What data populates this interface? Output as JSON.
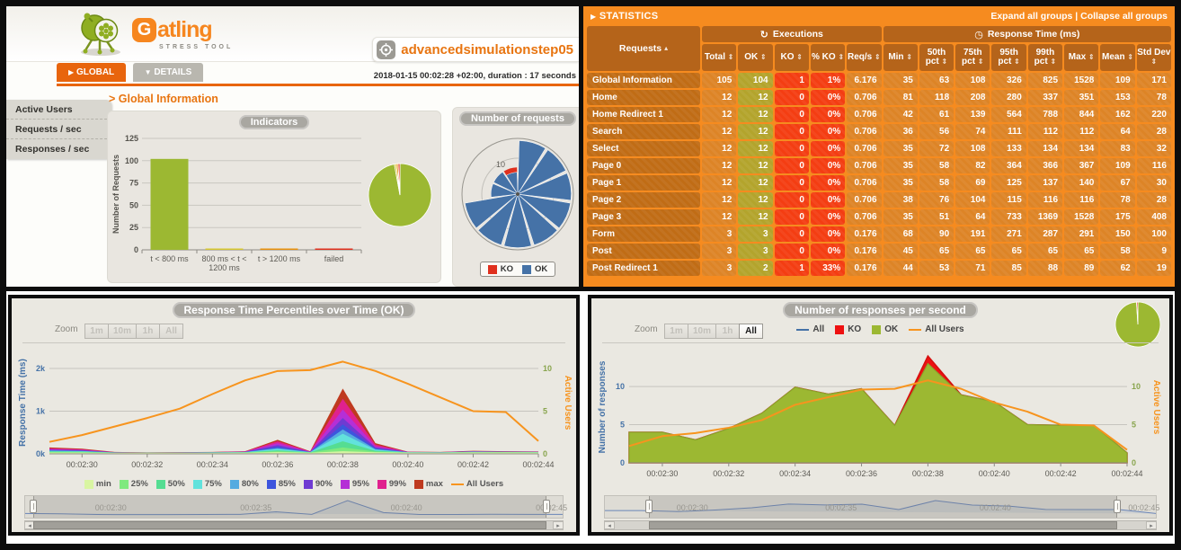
{
  "report": {
    "logo": {
      "g": "G",
      "rest": "atling",
      "subtitle": "STRESS TOOL"
    },
    "simulation": "advancedsimulationstep05",
    "run_info": "2018-01-15 00:02:28 +02:00, duration : 17 seconds",
    "tabs": [
      {
        "label": "GLOBAL",
        "arrow": "▶"
      },
      {
        "label": "DETAILS",
        "arrow": "▼"
      }
    ],
    "sidebar": [
      "Active Users",
      "Requests / sec",
      "Responses / sec"
    ],
    "section_title": "> Global Information"
  },
  "stats": {
    "header": "STATISTICS",
    "expand_label": "Expand all groups",
    "links_sep": " | ",
    "collapse_label": "Collapse all groups",
    "groups": {
      "executions": "Executions",
      "response_time": "Response Time (ms)"
    },
    "group_icons": {
      "executions": "↻",
      "response_time": "◷"
    },
    "requests_col": "Requests",
    "requests_sort": "▴",
    "sort_glyph": "⇕",
    "columns": [
      "Total",
      "OK",
      "KO",
      "% KO",
      "Req/s",
      "Min",
      "50th pct",
      "75th pct",
      "95th pct",
      "99th pct",
      "Max",
      "Mean",
      "Std Dev"
    ],
    "rows": [
      {
        "name": "Global Information",
        "summary": true,
        "values": [
          "105",
          "104",
          "1",
          "1%",
          "6.176",
          "35",
          "63",
          "108",
          "326",
          "825",
          "1528",
          "109",
          "171"
        ]
      },
      {
        "name": "Home",
        "values": [
          "12",
          "12",
          "0",
          "0%",
          "0.706",
          "81",
          "118",
          "208",
          "280",
          "337",
          "351",
          "153",
          "78"
        ]
      },
      {
        "name": "Home Redirect 1",
        "values": [
          "12",
          "12",
          "0",
          "0%",
          "0.706",
          "42",
          "61",
          "139",
          "564",
          "788",
          "844",
          "162",
          "220"
        ]
      },
      {
        "name": "Search",
        "values": [
          "12",
          "12",
          "0",
          "0%",
          "0.706",
          "36",
          "56",
          "74",
          "111",
          "112",
          "112",
          "64",
          "28"
        ]
      },
      {
        "name": "Select",
        "values": [
          "12",
          "12",
          "0",
          "0%",
          "0.706",
          "35",
          "72",
          "108",
          "133",
          "134",
          "134",
          "83",
          "32"
        ]
      },
      {
        "name": "Page 0",
        "values": [
          "12",
          "12",
          "0",
          "0%",
          "0.706",
          "35",
          "58",
          "82",
          "364",
          "366",
          "367",
          "109",
          "116"
        ]
      },
      {
        "name": "Page 1",
        "values": [
          "12",
          "12",
          "0",
          "0%",
          "0.706",
          "35",
          "58",
          "69",
          "125",
          "137",
          "140",
          "67",
          "30"
        ]
      },
      {
        "name": "Page 2",
        "values": [
          "12",
          "12",
          "0",
          "0%",
          "0.706",
          "38",
          "76",
          "104",
          "115",
          "116",
          "116",
          "78",
          "28"
        ]
      },
      {
        "name": "Page 3",
        "values": [
          "12",
          "12",
          "0",
          "0%",
          "0.706",
          "35",
          "51",
          "64",
          "733",
          "1369",
          "1528",
          "175",
          "408"
        ]
      },
      {
        "name": "Form",
        "values": [
          "3",
          "3",
          "0",
          "0%",
          "0.176",
          "68",
          "90",
          "191",
          "271",
          "287",
          "291",
          "150",
          "100"
        ]
      },
      {
        "name": "Post",
        "values": [
          "3",
          "3",
          "0",
          "0%",
          "0.176",
          "45",
          "65",
          "65",
          "65",
          "65",
          "65",
          "58",
          "9"
        ]
      },
      {
        "name": "Post Redirect 1",
        "values": [
          "3",
          "2",
          "1",
          "33%",
          "0.176",
          "44",
          "53",
          "71",
          "85",
          "88",
          "89",
          "62",
          "19"
        ]
      }
    ]
  },
  "chart_data": [
    {
      "id": "indicators",
      "type": "bar",
      "title": "Indicators",
      "ylabel": "Number of Requests",
      "categories": [
        "t < 800 ms",
        "800 ms < t <\n1200 ms",
        "t > 1200 ms",
        "failed"
      ],
      "values": [
        102,
        1,
        1,
        1
      ],
      "colors": [
        "#9cb832",
        "#d6c62f",
        "#e8910d",
        "#e0301e"
      ],
      "yticks": [
        0,
        25,
        50,
        75,
        100,
        125
      ],
      "ylim": [
        0,
        125
      ],
      "pie": {
        "values": [
          102,
          1,
          1,
          1
        ],
        "colors": [
          "#9cb832",
          "#d6c62f",
          "#e8910d",
          "#e0301e"
        ]
      }
    },
    {
      "id": "request-distribution",
      "type": "polar",
      "title": "Number of requests",
      "ring_label": "10",
      "legend": [
        {
          "label": "KO",
          "color": "#e0301e"
        },
        {
          "label": "OK",
          "color": "#4572a7"
        }
      ],
      "requests": [
        {
          "name": "Home",
          "ok": 12,
          "ko": 0
        },
        {
          "name": "Home Redirect 1",
          "ok": 12,
          "ko": 0
        },
        {
          "name": "Search",
          "ok": 12,
          "ko": 0
        },
        {
          "name": "Select",
          "ok": 12,
          "ko": 0
        },
        {
          "name": "Page 0",
          "ok": 12,
          "ko": 0
        },
        {
          "name": "Page 1",
          "ok": 12,
          "ko": 0
        },
        {
          "name": "Page 2",
          "ok": 12,
          "ko": 0
        },
        {
          "name": "Page 3",
          "ok": 12,
          "ko": 0
        },
        {
          "name": "Form",
          "ok": 3,
          "ko": 0
        },
        {
          "name": "Post",
          "ok": 3,
          "ko": 0
        },
        {
          "name": "Post Redirect 1",
          "ok": 2,
          "ko": 1
        }
      ]
    },
    {
      "id": "percentiles",
      "type": "area",
      "title": "Response Time Percentiles over Time (OK)",
      "zoom_label": "Zoom",
      "zoom_buttons": [
        {
          "label": "1m",
          "active": false
        },
        {
          "label": "10m",
          "active": false
        },
        {
          "label": "1h",
          "active": false
        },
        {
          "label": "All",
          "active": false
        }
      ],
      "x": [
        "00:02:29",
        "00:02:30",
        "00:02:31",
        "00:02:32",
        "00:02:33",
        "00:02:34",
        "00:02:35",
        "00:02:36",
        "00:02:37",
        "00:02:38",
        "00:02:39",
        "00:02:40",
        "00:02:41",
        "00:02:42",
        "00:02:43",
        "00:02:44"
      ],
      "xticks": {
        "idx": [
          1,
          3,
          5,
          7,
          9,
          11,
          13,
          15
        ],
        "labels": [
          "00:02:30",
          "00:02:32",
          "00:02:34",
          "00:02:36",
          "00:02:38",
          "00:02:40",
          "00:02:42",
          "00:02:44"
        ]
      },
      "ylabel_left": "Response Time (ms)",
      "yticks_left": {
        "values": [
          0,
          1000,
          2000
        ],
        "labels": [
          "0k",
          "1k",
          "2k"
        ]
      },
      "ylim_left": [
        0,
        2400
      ],
      "ylabel_right": "Active Users",
      "yticks_right": {
        "values": [
          0,
          5,
          10
        ],
        "labels": [
          "0",
          "5",
          "10"
        ]
      },
      "ylim_right": [
        0,
        12
      ],
      "series": [
        {
          "name": "min",
          "color": "#d9f5a2",
          "values": [
            30,
            28,
            24,
            24,
            24,
            25,
            27,
            40,
            27,
            60,
            36,
            28,
            27,
            32,
            31,
            29
          ]
        },
        {
          "name": "25%",
          "color": "#7fe97e",
          "values": [
            42,
            39,
            26,
            25,
            26,
            28,
            31,
            60,
            31,
            150,
            52,
            32,
            30,
            38,
            36,
            33
          ]
        },
        {
          "name": "50%",
          "color": "#55dd92",
          "values": [
            55,
            49,
            28,
            26,
            27,
            30,
            35,
            82,
            35,
            295,
            70,
            35,
            32,
            42,
            39,
            36
          ]
        },
        {
          "name": "75%",
          "color": "#62e2dc",
          "values": [
            68,
            61,
            30,
            27,
            29,
            33,
            39,
            112,
            39,
            470,
            95,
            37,
            34,
            47,
            42,
            39
          ]
        },
        {
          "name": "80%",
          "color": "#55abe0",
          "values": [
            76,
            67,
            32,
            28,
            30,
            34,
            41,
            135,
            41,
            570,
            110,
            39,
            35,
            49,
            44,
            41
          ]
        },
        {
          "name": "85%",
          "color": "#3d55dd",
          "values": [
            85,
            74,
            33,
            29,
            31,
            36,
            43,
            165,
            43,
            690,
            128,
            40,
            36,
            51,
            46,
            42
          ]
        },
        {
          "name": "90%",
          "color": "#6f3bd2",
          "values": [
            95,
            82,
            35,
            30,
            33,
            38,
            46,
            205,
            46,
            840,
            150,
            42,
            38,
            55,
            48,
            44
          ]
        },
        {
          "name": "95%",
          "color": "#b52fd6",
          "values": [
            110,
            92,
            37,
            31,
            35,
            40,
            50,
            250,
            50,
            1040,
            180,
            44,
            40,
            59,
            51,
            47
          ]
        },
        {
          "name": "99%",
          "color": "#e0218e",
          "values": [
            130,
            105,
            40,
            33,
            37,
            42,
            55,
            295,
            55,
            1290,
            215,
            47,
            42,
            64,
            55,
            50
          ]
        },
        {
          "name": "max",
          "color": "#bf3a1f",
          "values": [
            150,
            120,
            45,
            35,
            40,
            45,
            60,
            330,
            60,
            1530,
            250,
            50,
            45,
            70,
            60,
            55
          ]
        }
      ],
      "line": {
        "name": "All Users",
        "color": "#f7941e",
        "values": [
          1.4,
          2.2,
          3.2,
          4.2,
          5.3,
          7.0,
          8.6,
          9.7,
          9.8,
          10.8,
          9.7,
          8.2,
          6.6,
          5.0,
          4.9,
          1.5
        ]
      },
      "navigator": {
        "labels": [
          "00:02:30",
          "00:02:35",
          "00:02:40",
          "00:02:45"
        ],
        "positions": [
          13,
          40,
          68,
          95
        ],
        "selection": [
          1.5,
          97
        ]
      }
    },
    {
      "id": "responses",
      "type": "area",
      "title": "Number of responses per second",
      "zoom_label": "Zoom",
      "zoom_buttons": [
        {
          "label": "1m",
          "active": false
        },
        {
          "label": "10m",
          "active": false
        },
        {
          "label": "1h",
          "active": false
        },
        {
          "label": "All",
          "active": true
        }
      ],
      "legend": [
        {
          "label": "All",
          "color": "#4572a7",
          "swatch": "line"
        },
        {
          "label": "KO",
          "color": "#ee1111",
          "swatch": "box"
        },
        {
          "label": "OK",
          "color": "#9cb832",
          "swatch": "box"
        },
        {
          "label": "All Users",
          "color": "#f7941e",
          "swatch": "line"
        }
      ],
      "x": [
        "00:02:29",
        "00:02:30",
        "00:02:31",
        "00:02:32",
        "00:02:33",
        "00:02:34",
        "00:02:35",
        "00:02:36",
        "00:02:37",
        "00:02:38",
        "00:02:39",
        "00:02:40",
        "00:02:41",
        "00:02:42",
        "00:02:43",
        "00:02:44"
      ],
      "xticks": {
        "idx": [
          1,
          3,
          5,
          7,
          9,
          11,
          13,
          15
        ],
        "labels": [
          "00:02:30",
          "00:02:32",
          "00:02:34",
          "00:02:36",
          "00:02:38",
          "00:02:40",
          "00:02:42",
          "00:02:44"
        ]
      },
      "ylabel_left": "Number of responses",
      "yticks_left": {
        "values": [
          0,
          5,
          10
        ],
        "labels": [
          "0",
          "5",
          "10"
        ]
      },
      "ylim_left": [
        0,
        14.6
      ],
      "ylabel_right": "Active Users",
      "yticks_right": {
        "values": [
          0,
          5,
          10
        ],
        "labels": [
          "0",
          "5",
          "10"
        ]
      },
      "ylim_right": [
        0,
        14.6
      ],
      "series": [
        {
          "name": "OK",
          "color": "#9cb832",
          "stroke": "#8aa32b",
          "values": [
            4,
            4,
            3,
            4.5,
            6.5,
            9.9,
            9,
            9.7,
            4.9,
            13,
            8.9,
            8,
            5,
            4.9,
            4.9,
            1.3
          ]
        },
        {
          "name": "KO",
          "color": "#ee1111",
          "stroke": "#d40f0f",
          "values": [
            0,
            0,
            0,
            0,
            0,
            0,
            0,
            0,
            0,
            1,
            0,
            0,
            0,
            0,
            0,
            0
          ]
        }
      ],
      "line": {
        "name": "All Users",
        "color": "#f7941e",
        "values": [
          2.2,
          3.5,
          3.9,
          4.6,
          5.6,
          7.6,
          8.6,
          9.6,
          9.7,
          10.8,
          9.7,
          7.9,
          6.7,
          5.0,
          4.9,
          1.7
        ]
      },
      "pie": {
        "values": [
          104,
          1
        ],
        "colors": [
          "#9cb832",
          "#e0301e"
        ]
      },
      "navigator": {
        "labels": [
          "00:02:30",
          "00:02:35",
          "00:02:40",
          "00:02:45"
        ],
        "positions": [
          13,
          40,
          68,
          95
        ],
        "selection": [
          8,
          93
        ]
      }
    }
  ]
}
